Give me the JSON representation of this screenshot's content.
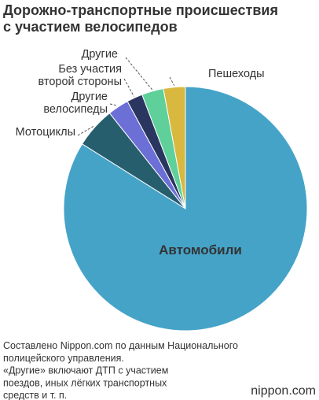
{
  "chart_data": {
    "type": "pie",
    "title": [
      "Дорожно-транспортные происшествия",
      "с участием велосипедов"
    ],
    "categories": [
      [
        "Автомобили"
      ],
      [
        "Мотоциклы"
      ],
      [
        "Другие",
        "велосипеды"
      ],
      [
        "Без участия",
        "второй стороны"
      ],
      [
        "Другие"
      ],
      [
        "Пешеходы"
      ]
    ],
    "values": [
      83.9,
      5.4,
      2.8,
      2.1,
      2.9,
      2.9
    ],
    "colors": [
      "#45a3c8",
      "#265e6e",
      "#6b6fd6",
      "#2a3660",
      "#5fd09a",
      "#d8b83e"
    ],
    "notes": [
      "Составлено Nippon.com по данным Национального",
      "полицейского управления.",
      "«Другие» включают ДТП с участием",
      "поездов, иных лёгких транспортных",
      "средств и т. п."
    ],
    "logo": "nippon.com"
  }
}
